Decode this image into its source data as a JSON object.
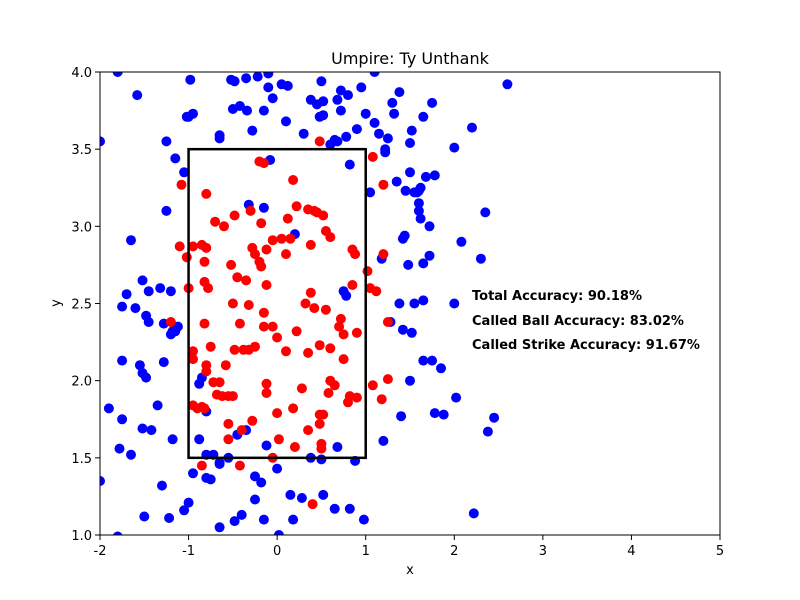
{
  "chart_data": {
    "type": "scatter",
    "title": "Umpire: Ty Unthank",
    "xlabel": "x",
    "ylabel": "y",
    "xlim": [
      -2,
      5
    ],
    "ylim": [
      1,
      4
    ],
    "xticks": [
      "-2",
      "-1",
      "0",
      "1",
      "2",
      "3",
      "4",
      "5"
    ],
    "yticks": [
      "1.0",
      "1.5",
      "2.0",
      "2.5",
      "3.0",
      "3.5",
      "4.0"
    ],
    "grid": false,
    "strike_zone": {
      "x": [
        -1,
        1
      ],
      "y": [
        1.5,
        3.5
      ],
      "color": "#000000"
    },
    "annotations": [
      "Total Accuracy: 90.18%",
      "Called Ball Accuracy: 83.02%",
      "Called Strike Accuracy: 91.67%"
    ],
    "series": [
      {
        "color": "#0000ff",
        "points": [
          [
            -1.8,
            4.0
          ],
          [
            -1.58,
            3.85
          ],
          [
            -0.98,
            3.95
          ],
          [
            -0.95,
            3.73
          ],
          [
            -0.52,
            3.95
          ],
          [
            -0.48,
            3.94
          ],
          [
            -0.35,
            3.96
          ],
          [
            -0.22,
            3.97
          ],
          [
            -0.1,
            3.99
          ],
          [
            -0.1,
            3.9
          ],
          [
            0.05,
            3.92
          ],
          [
            0.12,
            3.91
          ],
          [
            0.5,
            3.94
          ],
          [
            0.72,
            3.88
          ],
          [
            0.95,
            3.9
          ],
          [
            1.1,
            4.0
          ],
          [
            -2.0,
            3.55
          ],
          [
            -1.02,
            3.71
          ],
          [
            -1.0,
            3.71
          ],
          [
            -0.65,
            3.57
          ],
          [
            -0.5,
            3.76
          ],
          [
            -0.42,
            3.78
          ],
          [
            -0.34,
            3.75
          ],
          [
            -0.15,
            3.75
          ],
          [
            -0.05,
            3.83
          ],
          [
            0.38,
            3.82
          ],
          [
            0.45,
            3.79
          ],
          [
            0.52,
            3.81
          ],
          [
            0.68,
            3.82
          ],
          [
            0.72,
            3.75
          ],
          [
            0.8,
            3.85
          ],
          [
            0.9,
            3.63
          ],
          [
            1.0,
            3.73
          ],
          [
            1.15,
            3.6
          ],
          [
            1.3,
            3.8
          ],
          [
            1.38,
            3.87
          ],
          [
            1.65,
            3.71
          ],
          [
            1.75,
            3.8
          ],
          [
            2.6,
            3.92
          ],
          [
            -0.65,
            3.59
          ],
          [
            -0.28,
            3.62
          ],
          [
            0.1,
            3.68
          ],
          [
            0.3,
            3.6
          ],
          [
            0.48,
            3.71
          ],
          [
            0.52,
            3.72
          ],
          [
            0.6,
            3.53
          ],
          [
            0.65,
            3.56
          ],
          [
            0.78,
            3.58
          ],
          [
            1.1,
            3.67
          ],
          [
            1.32,
            3.73
          ],
          [
            1.52,
            3.62
          ],
          [
            1.5,
            3.54
          ],
          [
            1.25,
            3.57
          ],
          [
            2.0,
            3.51
          ],
          [
            2.2,
            3.64
          ],
          [
            -1.25,
            3.55
          ],
          [
            -1.15,
            3.44
          ],
          [
            -1.05,
            3.35
          ],
          [
            -0.08,
            3.43
          ],
          [
            0.68,
            3.55
          ],
          [
            0.82,
            3.4
          ],
          [
            1.22,
            3.48
          ],
          [
            1.22,
            3.5
          ],
          [
            1.35,
            3.29
          ],
          [
            1.45,
            3.23
          ],
          [
            1.5,
            3.35
          ],
          [
            1.55,
            3.22
          ],
          [
            1.58,
            3.22
          ],
          [
            1.6,
            3.23
          ],
          [
            1.62,
            3.25
          ],
          [
            1.68,
            3.32
          ],
          [
            1.78,
            3.33
          ],
          [
            1.05,
            3.22
          ],
          [
            -1.25,
            3.1
          ],
          [
            -0.32,
            3.14
          ],
          [
            -0.15,
            3.12
          ],
          [
            1.6,
            3.15
          ],
          [
            1.62,
            3.05
          ],
          [
            1.6,
            3.1
          ],
          [
            1.72,
            3.0
          ],
          [
            2.35,
            3.09
          ],
          [
            -1.65,
            2.91
          ],
          [
            0.2,
            2.95
          ],
          [
            1.42,
            2.92
          ],
          [
            1.44,
            2.94
          ],
          [
            2.08,
            2.9
          ],
          [
            1.72,
            2.81
          ],
          [
            1.65,
            2.76
          ],
          [
            1.48,
            2.75
          ],
          [
            1.18,
            2.79
          ],
          [
            2.3,
            2.79
          ],
          [
            -1.52,
            2.65
          ],
          [
            -1.45,
            2.58
          ],
          [
            -1.32,
            2.6
          ],
          [
            -1.2,
            2.58
          ],
          [
            -1.7,
            2.56
          ],
          [
            -1.75,
            2.48
          ],
          [
            -1.6,
            2.47
          ],
          [
            -1.48,
            2.42
          ],
          [
            -1.45,
            2.38
          ],
          [
            -1.28,
            2.37
          ],
          [
            -1.18,
            2.32
          ],
          [
            -1.15,
            2.32
          ],
          [
            -1.12,
            2.35
          ],
          [
            -1.2,
            2.3
          ],
          [
            0.75,
            2.58
          ],
          [
            0.78,
            2.55
          ],
          [
            1.38,
            2.5
          ],
          [
            1.55,
            2.5
          ],
          [
            1.65,
            2.52
          ],
          [
            1.28,
            2.38
          ],
          [
            1.42,
            2.33
          ],
          [
            1.52,
            2.31
          ],
          [
            2.0,
            2.5
          ],
          [
            -1.75,
            2.13
          ],
          [
            -1.28,
            2.12
          ],
          [
            -1.55,
            2.1
          ],
          [
            -1.52,
            2.05
          ],
          [
            -1.48,
            2.02
          ],
          [
            -0.85,
            2.02
          ],
          [
            1.65,
            2.13
          ],
          [
            1.75,
            2.13
          ],
          [
            1.85,
            2.08
          ],
          [
            1.5,
            2.0
          ],
          [
            -1.9,
            1.82
          ],
          [
            -1.75,
            1.75
          ],
          [
            -1.35,
            1.84
          ],
          [
            -0.8,
            1.8
          ],
          [
            -0.88,
            1.98
          ],
          [
            1.78,
            1.79
          ],
          [
            1.88,
            1.78
          ],
          [
            2.02,
            1.89
          ],
          [
            1.4,
            1.77
          ],
          [
            2.45,
            1.76
          ],
          [
            2.38,
            1.67
          ],
          [
            -1.52,
            1.69
          ],
          [
            -1.42,
            1.68
          ],
          [
            -1.78,
            1.56
          ],
          [
            -1.65,
            1.52
          ],
          [
            -1.18,
            1.62
          ],
          [
            -0.88,
            1.62
          ],
          [
            -0.8,
            1.52
          ],
          [
            -0.72,
            1.52
          ],
          [
            -0.65,
            1.46
          ],
          [
            -0.55,
            1.5
          ],
          [
            -0.45,
            1.65
          ],
          [
            -0.35,
            1.68
          ],
          [
            -0.12,
            1.58
          ],
          [
            0.38,
            1.5
          ],
          [
            0.5,
            1.49
          ],
          [
            0.68,
            1.57
          ],
          [
            0.88,
            1.48
          ],
          [
            1.2,
            1.61
          ],
          [
            -0.95,
            1.4
          ],
          [
            -0.8,
            1.37
          ],
          [
            -0.75,
            1.36
          ],
          [
            -0.65,
            1.47
          ],
          [
            -0.25,
            1.38
          ],
          [
            -0.18,
            1.34
          ],
          [
            0.0,
            1.43
          ],
          [
            -2.0,
            1.35
          ],
          [
            -1.3,
            1.32
          ],
          [
            -0.25,
            1.23
          ],
          [
            -1.0,
            1.21
          ],
          [
            0.15,
            1.26
          ],
          [
            0.28,
            1.24
          ],
          [
            0.52,
            1.26
          ],
          [
            -1.5,
            1.12
          ],
          [
            -1.22,
            1.11
          ],
          [
            -1.05,
            1.16
          ],
          [
            -0.4,
            1.13
          ],
          [
            -0.48,
            1.09
          ],
          [
            -0.65,
            1.05
          ],
          [
            -0.15,
            1.1
          ],
          [
            0.18,
            1.1
          ],
          [
            0.65,
            1.17
          ],
          [
            0.82,
            1.17
          ],
          [
            0.98,
            1.1
          ],
          [
            2.22,
            1.14
          ],
          [
            0.02,
            1.0
          ],
          [
            -1.8,
            0.99
          ]
        ]
      },
      {
        "color": "#ff0000",
        "points": [
          [
            0.48,
            3.55
          ],
          [
            -0.2,
            3.42
          ],
          [
            -0.15,
            3.41
          ],
          [
            1.08,
            3.45
          ],
          [
            -1.08,
            3.27
          ],
          [
            0.18,
            3.3
          ],
          [
            1.2,
            3.27
          ],
          [
            -0.8,
            3.21
          ],
          [
            -0.48,
            3.07
          ],
          [
            -0.3,
            3.1
          ],
          [
            0.22,
            3.13
          ],
          [
            0.35,
            3.11
          ],
          [
            0.42,
            3.1
          ],
          [
            0.45,
            3.09
          ],
          [
            0.52,
            3.07
          ],
          [
            -0.18,
            3.02
          ],
          [
            0.12,
            3.05
          ],
          [
            -0.7,
            3.03
          ],
          [
            -0.6,
            3.0
          ],
          [
            -0.8,
            2.86
          ],
          [
            -0.85,
            2.88
          ],
          [
            -0.95,
            2.87
          ],
          [
            -1.1,
            2.87
          ],
          [
            -0.05,
            2.91
          ],
          [
            0.05,
            2.92
          ],
          [
            0.15,
            2.92
          ],
          [
            0.38,
            2.88
          ],
          [
            0.55,
            2.97
          ],
          [
            0.6,
            2.93
          ],
          [
            0.85,
            2.85
          ],
          [
            0.88,
            2.82
          ],
          [
            -0.28,
            2.86
          ],
          [
            -0.25,
            2.82
          ],
          [
            -0.12,
            2.85
          ],
          [
            0.1,
            2.82
          ],
          [
            -0.2,
            2.77
          ],
          [
            -0.18,
            2.74
          ],
          [
            -1.02,
            2.8
          ],
          [
            -0.82,
            2.77
          ],
          [
            -0.52,
            2.75
          ],
          [
            -0.45,
            2.67
          ],
          [
            -0.35,
            2.65
          ],
          [
            -0.82,
            2.64
          ],
          [
            -0.78,
            2.6
          ],
          [
            -1.0,
            2.6
          ],
          [
            -0.12,
            2.62
          ],
          [
            0.38,
            2.57
          ],
          [
            0.85,
            2.62
          ],
          [
            1.05,
            2.6
          ],
          [
            1.12,
            2.58
          ],
          [
            1.2,
            2.82
          ],
          [
            1.02,
            2.71
          ],
          [
            -0.5,
            2.5
          ],
          [
            -0.32,
            2.49
          ],
          [
            -0.15,
            2.44
          ],
          [
            0.32,
            2.5
          ],
          [
            0.42,
            2.47
          ],
          [
            0.55,
            2.46
          ],
          [
            -0.82,
            2.37
          ],
          [
            -0.42,
            2.37
          ],
          [
            -0.15,
            2.35
          ],
          [
            -0.05,
            2.35
          ],
          [
            0.22,
            2.32
          ],
          [
            0.72,
            2.4
          ],
          [
            0.7,
            2.35
          ],
          [
            0.75,
            2.3
          ],
          [
            0.9,
            2.31
          ],
          [
            1.25,
            2.38
          ],
          [
            -0.75,
            2.22
          ],
          [
            -0.48,
            2.2
          ],
          [
            -0.38,
            2.2
          ],
          [
            -0.32,
            2.2
          ],
          [
            -0.25,
            2.22
          ],
          [
            0.0,
            2.28
          ],
          [
            0.1,
            2.19
          ],
          [
            0.35,
            2.18
          ],
          [
            0.48,
            2.23
          ],
          [
            0.6,
            2.21
          ],
          [
            0.75,
            2.14
          ],
          [
            -0.95,
            2.19
          ],
          [
            -0.95,
            2.14
          ],
          [
            -0.8,
            2.1
          ],
          [
            -0.8,
            2.06
          ],
          [
            -0.58,
            2.1
          ],
          [
            -0.72,
            1.99
          ],
          [
            -0.65,
            1.99
          ],
          [
            -0.12,
            1.98
          ],
          [
            0.28,
            1.95
          ],
          [
            0.6,
            2.0
          ],
          [
            0.65,
            1.97
          ],
          [
            1.25,
            2.01
          ],
          [
            1.08,
            1.97
          ],
          [
            -0.5,
            1.9
          ],
          [
            -0.68,
            1.91
          ],
          [
            -0.62,
            1.9
          ],
          [
            -0.55,
            1.9
          ],
          [
            -0.12,
            1.92
          ],
          [
            0.58,
            1.92
          ],
          [
            0.82,
            1.9
          ],
          [
            0.9,
            1.89
          ],
          [
            0.8,
            1.86
          ],
          [
            1.18,
            1.88
          ],
          [
            -0.95,
            1.84
          ],
          [
            -0.9,
            1.82
          ],
          [
            -0.85,
            1.83
          ],
          [
            -0.82,
            1.82
          ],
          [
            0.0,
            1.79
          ],
          [
            0.18,
            1.82
          ],
          [
            0.48,
            1.78
          ],
          [
            0.52,
            1.78
          ],
          [
            -0.55,
            1.72
          ],
          [
            -0.28,
            1.74
          ],
          [
            0.35,
            1.68
          ],
          [
            0.48,
            1.72
          ],
          [
            -0.4,
            1.68
          ],
          [
            -0.55,
            1.62
          ],
          [
            0.02,
            1.62
          ],
          [
            0.2,
            1.57
          ],
          [
            0.5,
            1.59
          ],
          [
            0.5,
            1.56
          ],
          [
            -0.05,
            1.5
          ],
          [
            -0.85,
            1.45
          ],
          [
            -0.42,
            1.45
          ],
          [
            -1.2,
            2.38
          ],
          [
            0.4,
            1.2
          ]
        ]
      }
    ]
  }
}
